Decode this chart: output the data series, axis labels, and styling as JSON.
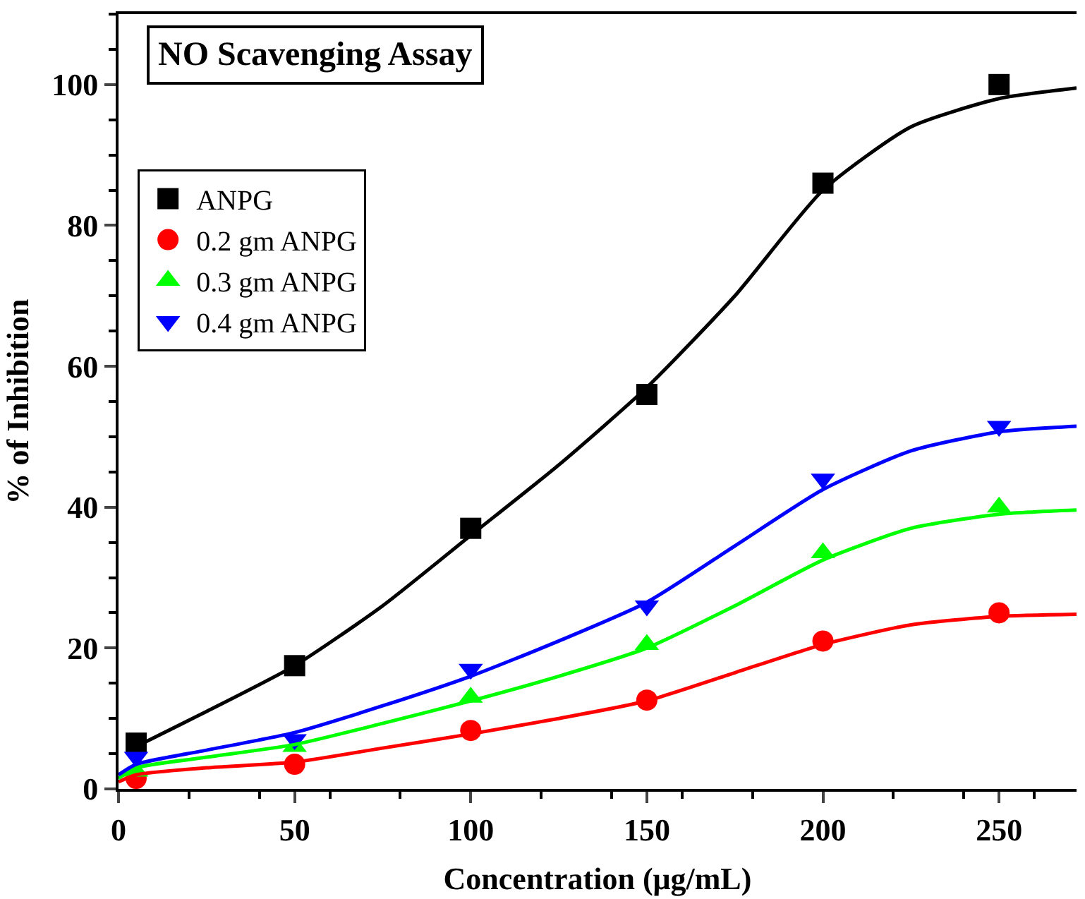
{
  "chart_data": {
    "type": "scatter",
    "title": "NO Scavenging Assay",
    "xlabel": "Concentration (μg/mL)",
    "ylabel": "% of Inhibition",
    "xlim": [
      0,
      272
    ],
    "xticks": [
      0,
      50,
      100,
      150,
      200,
      250
    ],
    "ylim": [
      0,
      110
    ],
    "yticks": [
      0,
      20,
      40,
      60,
      80,
      100
    ],
    "legend": "top left",
    "series": [
      {
        "name": "ANPG",
        "marker": "square",
        "color": "#000000",
        "x": [
          5,
          50,
          100,
          150,
          200,
          250
        ],
        "values": [
          6.5,
          17.5,
          37,
          56,
          86,
          100
        ]
      },
      {
        "name": "0.2 gm ANPG",
        "marker": "circle",
        "color": "#ff0000",
        "x": [
          5,
          50,
          100,
          150,
          200,
          250
        ],
        "values": [
          1.5,
          3.5,
          8.3,
          12.6,
          21,
          25
        ]
      },
      {
        "name": "0.3 gm ANPG",
        "marker": "triangle",
        "color": "#00ff00",
        "x": [
          5,
          50,
          100,
          150,
          200,
          250
        ],
        "values": [
          2.5,
          6,
          13,
          20.5,
          33.5,
          40
        ]
      },
      {
        "name": "0.4 gm ANPG",
        "marker": "triangle-down",
        "color": "#0000ff",
        "x": [
          5,
          50,
          100,
          150,
          200,
          250
        ],
        "values": [
          4.5,
          7,
          17,
          26,
          44,
          51.5
        ]
      },
      {
        "type": "line",
        "color": "#000000",
        "x": [
          5,
          25,
          50,
          75,
          100,
          125,
          150,
          175,
          200,
          225,
          250,
          272
        ],
        "values": [
          6,
          11,
          17.5,
          26,
          36,
          46,
          57,
          70,
          85,
          94,
          98,
          99.5
        ]
      },
      {
        "type": "line",
        "color": "#ff0000",
        "x": [
          0,
          5,
          25,
          50,
          75,
          100,
          125,
          150,
          175,
          200,
          225,
          250,
          272
        ],
        "values": [
          1,
          2,
          3,
          3.8,
          5.8,
          7.8,
          10,
          12.5,
          16.5,
          20.5,
          23.3,
          24.5,
          24.8
        ]
      },
      {
        "type": "line",
        "color": "#00ff00",
        "x": [
          0,
          5,
          25,
          50,
          75,
          100,
          125,
          150,
          175,
          200,
          225,
          250,
          272
        ],
        "values": [
          1.5,
          3,
          4.5,
          6.3,
          9.3,
          12.5,
          16,
          20,
          26,
          32.5,
          37,
          39,
          39.6
        ]
      },
      {
        "type": "line",
        "color": "#0000ff",
        "x": [
          0,
          5,
          25,
          50,
          75,
          100,
          125,
          150,
          175,
          200,
          225,
          250,
          272
        ],
        "values": [
          2,
          3.5,
          5.5,
          8,
          11.8,
          16,
          21,
          26.5,
          34.5,
          42.5,
          48,
          50.7,
          51.5
        ]
      }
    ]
  }
}
